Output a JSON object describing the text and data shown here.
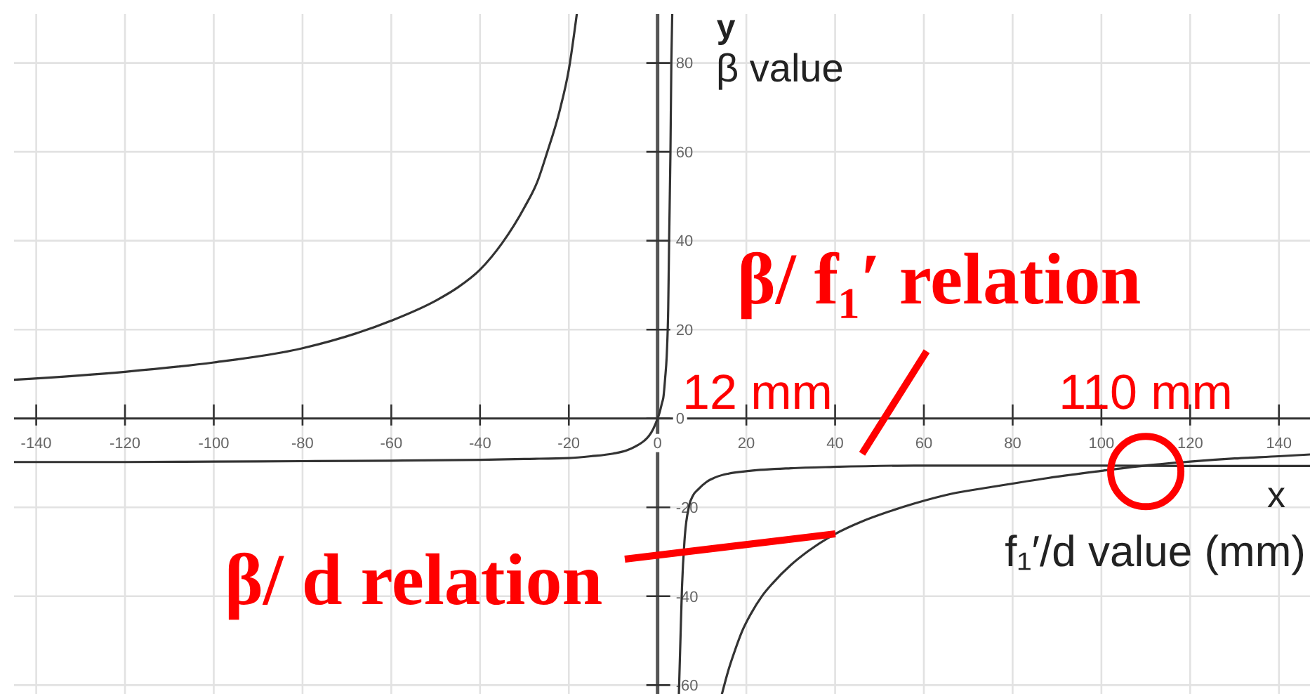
{
  "chart_data": {
    "type": "line",
    "xlabel": "f₁′/d value (mm)",
    "ylabel": "β value",
    "annotations": [
      "y",
      "x",
      "12 mm",
      {
        "text": "110 mm",
        "x": 110,
        "y": -11
      }
    ],
    "xlim": [
      -145,
      147
    ],
    "ylim": [
      -62,
      91
    ],
    "xticks": [
      -140,
      -120,
      -100,
      -80,
      -60,
      -40,
      -20,
      0,
      20,
      40,
      60,
      80,
      100,
      120,
      140
    ],
    "yticks": [
      -60,
      -40,
      -20,
      0,
      20,
      40,
      60,
      80
    ],
    "grid": true,
    "series": [
      {
        "name": "β/ f₁′ relation",
        "color": "#333333",
        "x": [
          -145,
          -120,
          -100,
          -80,
          -60,
          -40,
          -30,
          -20,
          -15,
          -10,
          -7,
          -5,
          -3,
          -2,
          -1,
          0,
          0.5,
          1,
          1.3,
          1.7,
          2.1,
          2.4,
          2.6,
          2.9,
          3.1,
          3.3,
          4,
          4.8,
          5.2,
          5.5,
          6.1,
          7.1,
          8,
          9.2,
          11,
          13.4,
          16,
          20.7,
          30,
          39.7,
          57.8,
          80,
          100,
          120,
          147
        ],
        "values": [
          -9.8,
          -9.8,
          -9.7,
          -9.6,
          -9.5,
          -9.3,
          -9.1,
          -8.9,
          -8.5,
          -7.9,
          -7.2,
          -6.3,
          -5,
          -4,
          -2.4,
          0,
          1.5,
          3.5,
          4.7,
          9,
          15,
          25,
          40,
          60,
          80,
          91,
          null,
          -62,
          -48,
          -38,
          -27,
          -19.7,
          -17.3,
          -15.9,
          -14.3,
          -13.1,
          -12.4,
          -11.8,
          -11.2,
          -10.9,
          -10.6,
          -10.6,
          -10.6,
          -10.7,
          -10.7
        ]
      },
      {
        "name": "β/ d relation",
        "color": "#333333",
        "x": [
          -145,
          -120,
          -100,
          -80,
          -60,
          -50,
          -45,
          -40,
          -35,
          -30,
          -27,
          -25,
          -22,
          -20,
          -18.2,
          0,
          14.5,
          16,
          17.5,
          19,
          21,
          23.5,
          26,
          30,
          34,
          40,
          46,
          52,
          58,
          66,
          76,
          88,
          100,
          108,
          120,
          130,
          140,
          147
        ],
        "values": [
          8.7,
          10.5,
          12.6,
          15.8,
          22,
          26.5,
          29.5,
          33.5,
          39.5,
          47.5,
          53.5,
          59.5,
          69.5,
          78.5,
          91,
          null,
          -62,
          -56.5,
          -52,
          -48,
          -44,
          -40,
          -37,
          -33,
          -29.8,
          -26,
          -23.2,
          -21,
          -19.1,
          -17,
          -15.3,
          -13.4,
          -11.8,
          -10.8,
          -9.7,
          -9,
          -8.5,
          -8.1
        ]
      }
    ]
  }
}
